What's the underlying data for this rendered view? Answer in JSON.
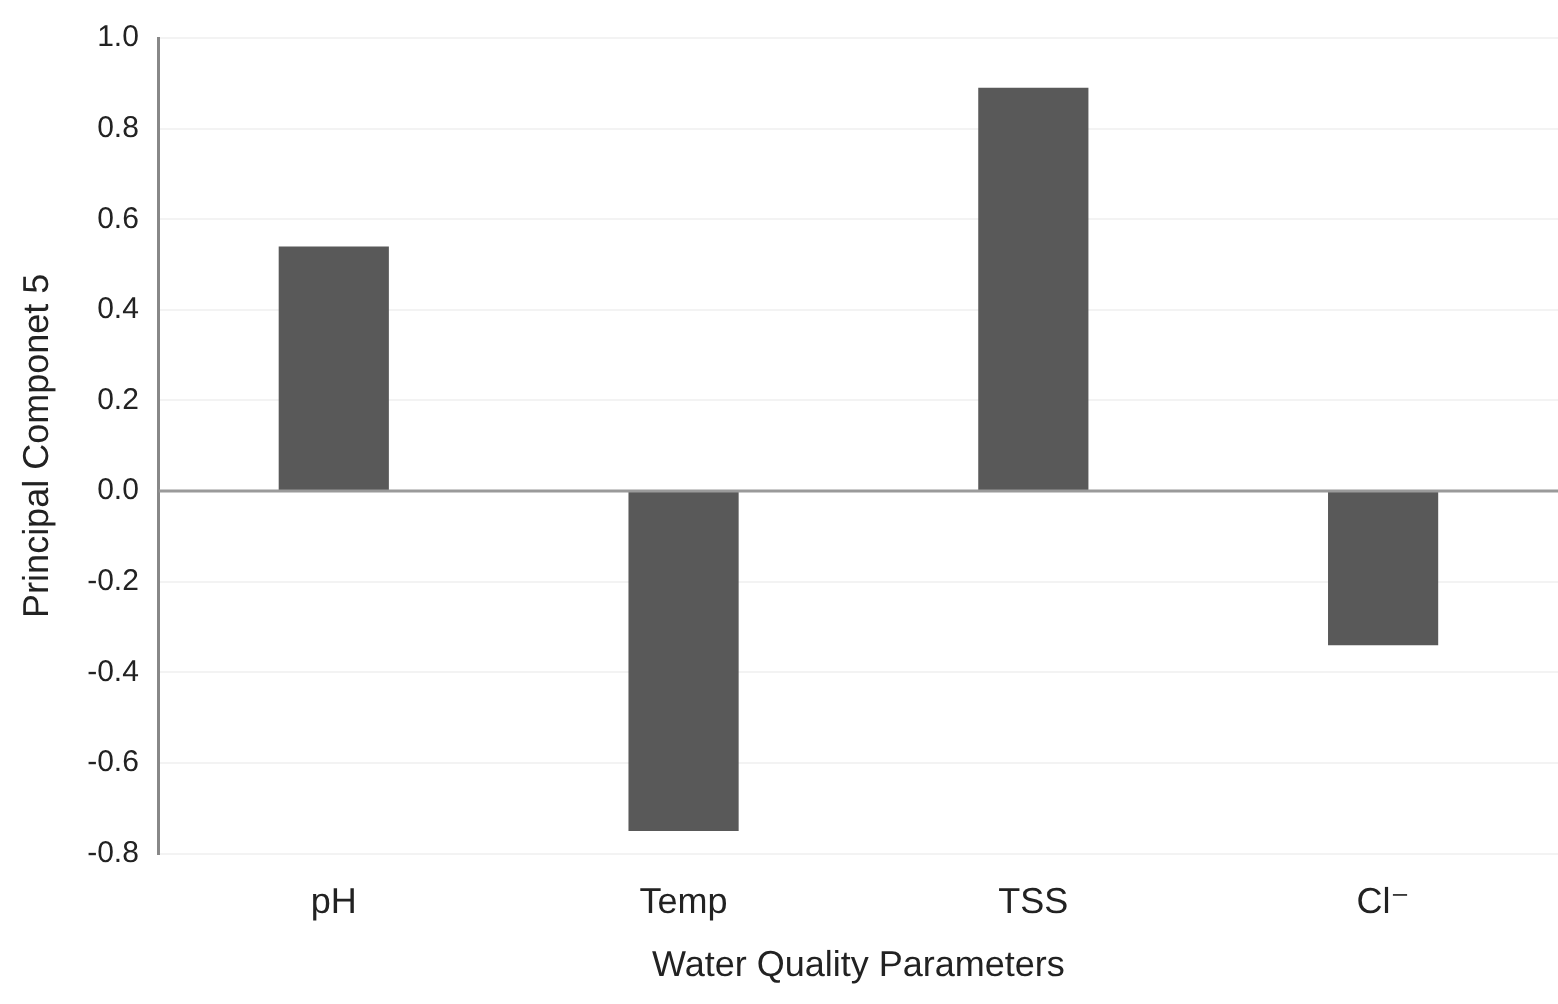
{
  "chart_data": {
    "type": "bar",
    "xlabel": "Water Quality Parameters",
    "ylabel": "Principal Componet 5",
    "categories": [
      "pH",
      "Temp",
      "TSS",
      "Cl⁻"
    ],
    "values": [
      0.54,
      -0.75,
      0.89,
      -0.34
    ],
    "color": "#595959",
    "ylim": [
      -0.8,
      1.0
    ],
    "yticks": [
      -0.8,
      -0.6,
      -0.4,
      -0.2,
      {
        "value": 0,
        "label": "0.0"
      },
      0.2,
      0.4,
      0.6,
      0.8,
      {
        "value": 1,
        "label": "1.0"
      }
    ],
    "grid": "y",
    "legend": false
  }
}
